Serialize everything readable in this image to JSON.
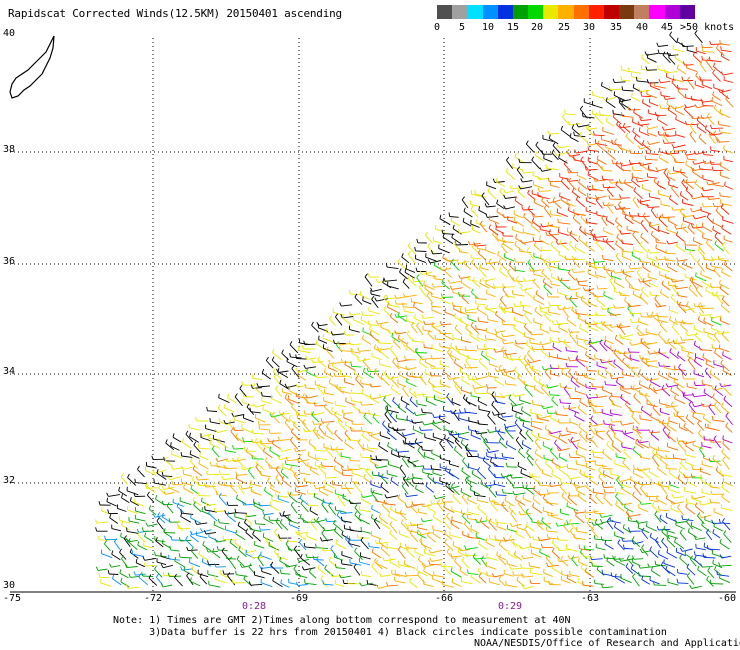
{
  "title": "Rapidscat Corrected Winds(12.5KM) 20150401 ascending",
  "colorbar": {
    "colors": [
      "#505050",
      "#a0a0a0",
      "#00e0ff",
      "#0090ff",
      "#0030e0",
      "#00a000",
      "#00d800",
      "#e8e800",
      "#ffb000",
      "#ff7000",
      "#ff2000",
      "#c00000",
      "#7a3a10",
      "#c08060",
      "#ff00ff",
      "#b000d8",
      "#6000a0"
    ],
    "labels": [
      "0",
      "5",
      "10",
      "15",
      "20",
      "25",
      "30",
      "35",
      "40",
      "45",
      ">50 knots"
    ]
  },
  "axes": {
    "lat_labels": [
      "40",
      "38",
      "36",
      "34",
      "32",
      "30"
    ],
    "lon_labels": [
      "-75",
      "-72",
      "-69",
      "-66",
      "-63",
      "-60"
    ]
  },
  "times": [
    "0:28",
    "0:29"
  ],
  "notes": [
    "Note: 1) Times are GMT 2)Times along bottom correspond to measurement at 40N",
    "      3)Data buffer is 22 hrs from 20150401 4) Black circles indicate possible contamination"
  ],
  "credit": "NOAA/NESDIS/Office of Research and Applications"
}
